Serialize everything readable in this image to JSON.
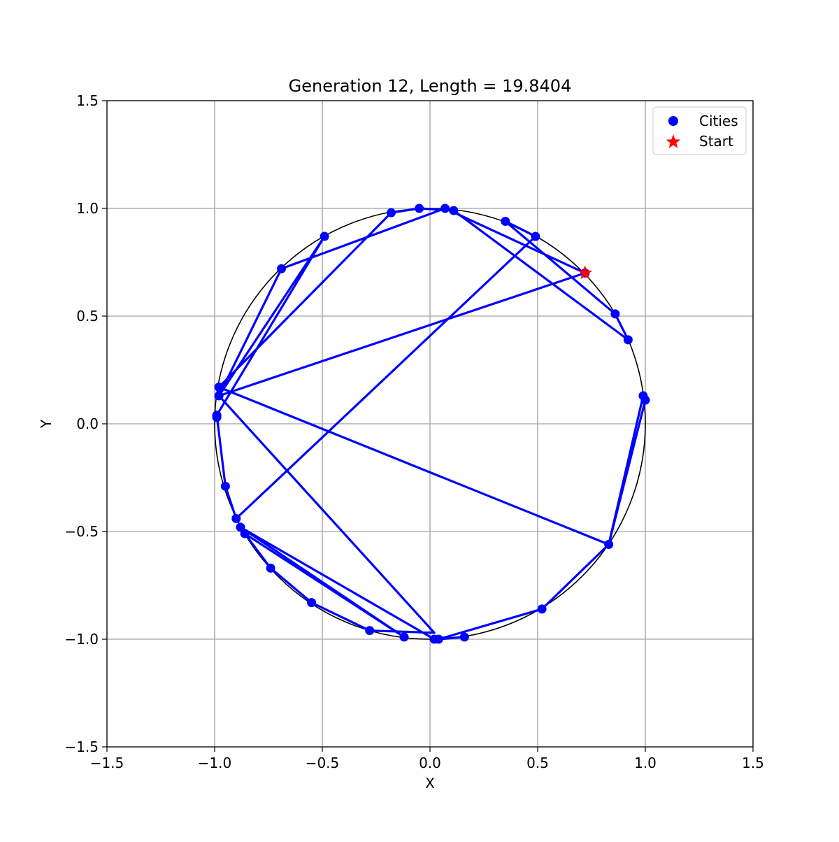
{
  "chart_data": {
    "type": "scatter",
    "title": "Generation 12, Length = 19.8404",
    "xlabel": "X",
    "ylabel": "Y",
    "xlim": [
      -1.5,
      1.5
    ],
    "ylim": [
      -1.5,
      1.5
    ],
    "xticks": [
      -1.5,
      -1.0,
      -0.5,
      0.0,
      0.5,
      1.0,
      1.5
    ],
    "yticks": [
      -1.5,
      -1.0,
      -0.5,
      0.0,
      0.5,
      1.0,
      1.5
    ],
    "xtick_labels": [
      "−1.5",
      "−1.0",
      "−0.5",
      "0.0",
      "0.5",
      "1.0",
      "1.5"
    ],
    "ytick_labels": [
      "−1.5",
      "−1.0",
      "−0.5",
      "0.0",
      "0.5",
      "1.0",
      "1.5"
    ],
    "grid": true,
    "legend_position": "top-right",
    "colors": {
      "cities": "#0000ff",
      "route": "#0000ff",
      "start": "#ff0000",
      "circle": "#000000",
      "grid": "#b0b0b0"
    },
    "reference_circle": {
      "center": [
        0,
        0
      ],
      "radius": 1.0
    },
    "series": [
      {
        "name": "Cities",
        "marker": "circle",
        "points": [
          [
            0.72,
            0.7
          ],
          [
            0.86,
            0.51
          ],
          [
            0.92,
            0.39
          ],
          [
            0.99,
            0.13
          ],
          [
            1.0,
            0.11
          ],
          [
            0.83,
            -0.56
          ],
          [
            0.52,
            -0.86
          ],
          [
            0.16,
            -0.99
          ],
          [
            0.04,
            -1.0
          ],
          [
            0.02,
            -1.0
          ],
          [
            -0.12,
            -0.99
          ],
          [
            -0.28,
            -0.96
          ],
          [
            -0.55,
            -0.83
          ],
          [
            -0.74,
            -0.67
          ],
          [
            -0.86,
            -0.51
          ],
          [
            -0.88,
            -0.48
          ],
          [
            -0.9,
            -0.44
          ],
          [
            -0.95,
            -0.29
          ],
          [
            -0.99,
            0.04
          ],
          [
            -0.99,
            0.03
          ],
          [
            -0.98,
            0.13
          ],
          [
            -0.98,
            0.17
          ],
          [
            -0.69,
            0.72
          ],
          [
            -0.49,
            0.87
          ],
          [
            -0.18,
            0.98
          ],
          [
            -0.05,
            1.0
          ],
          [
            0.07,
            1.0
          ],
          [
            0.11,
            0.99
          ],
          [
            0.35,
            0.94
          ],
          [
            0.49,
            0.87
          ]
        ]
      },
      {
        "name": "Start",
        "marker": "star",
        "points": [
          [
            0.72,
            0.7
          ]
        ]
      }
    ],
    "route": [
      [
        0.72,
        0.7
      ],
      [
        0.07,
        1.0
      ],
      [
        -0.69,
        0.72
      ],
      [
        -0.98,
        0.13
      ],
      [
        -0.49,
        0.87
      ],
      [
        -0.99,
        0.04
      ],
      [
        -0.95,
        -0.29
      ],
      [
        -0.9,
        -0.44
      ],
      [
        0.49,
        0.87
      ],
      [
        0.35,
        0.94
      ],
      [
        0.86,
        0.51
      ],
      [
        0.92,
        0.39
      ],
      [
        0.11,
        0.99
      ],
      [
        -0.05,
        1.0
      ],
      [
        -0.18,
        0.98
      ],
      [
        -0.98,
        0.17
      ],
      [
        0.83,
        -0.56
      ],
      [
        0.99,
        0.13
      ],
      [
        1.0,
        0.11
      ],
      [
        0.83,
        -0.56
      ],
      [
        0.52,
        -0.86
      ],
      [
        0.04,
        -1.0
      ],
      [
        0.16,
        -0.99
      ],
      [
        0.02,
        -1.0
      ],
      [
        -0.88,
        -0.48
      ],
      [
        -0.12,
        -0.99
      ],
      [
        -0.86,
        -0.51
      ],
      [
        -0.74,
        -0.67
      ],
      [
        -0.55,
        -0.83
      ],
      [
        -0.28,
        -0.96
      ],
      [
        0.02,
        -0.97
      ],
      [
        -0.98,
        0.13
      ],
      [
        0.72,
        0.7
      ]
    ]
  }
}
